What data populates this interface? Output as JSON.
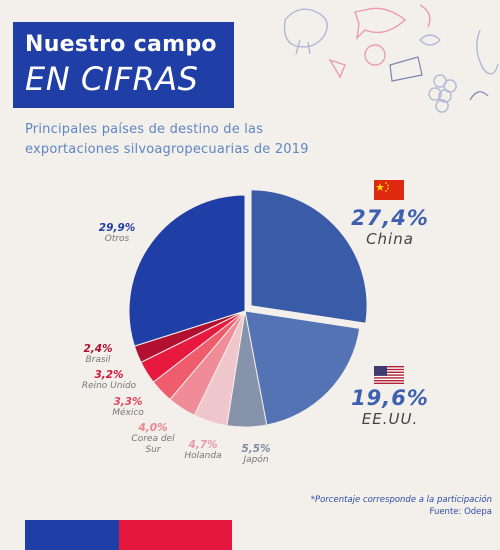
{
  "title": {
    "line1": "Nuestro campo",
    "line2": "EN CIFRAS"
  },
  "colors": {
    "background": "#f3efea",
    "title_box": "#1f3ea6",
    "bottom_blue": "#1f3ea6",
    "bottom_red": "#e6173f"
  },
  "chart_data": {
    "type": "pie",
    "title": "Principales países de destino de las exportaciones silvoagropecuarias de 2019",
    "unit": "%",
    "exploded_slice": "China",
    "slices": [
      {
        "label": "China",
        "value": 27.4,
        "value_text": "27,4%",
        "color": "#3a5ba8"
      },
      {
        "label": "EE.UU.",
        "value": 19.6,
        "value_text": "19,6%",
        "color": "#5473b5"
      },
      {
        "label": "Japón",
        "value": 5.5,
        "value_text": "5,5%",
        "color": "#8793aa"
      },
      {
        "label": "Holanda",
        "value": 4.7,
        "value_text": "4,7%",
        "color": "#efc6cb"
      },
      {
        "label": "Corea del Sur",
        "value": 4.0,
        "value_text": "4,0%",
        "color": "#ef8c98"
      },
      {
        "label": "México",
        "value": 3.3,
        "value_text": "3,3%",
        "color": "#ef5c6c"
      },
      {
        "label": "Reino Unido",
        "value": 3.2,
        "value_text": "3,2%",
        "color": "#e8193f"
      },
      {
        "label": "Brasil",
        "value": 2.4,
        "value_text": "2,4%",
        "color": "#b21030"
      },
      {
        "label": "Otros",
        "value": 29.9,
        "value_text": "29,9%",
        "color": "#1f3ea6"
      }
    ],
    "label_colors": {
      "China": "#3d61b0",
      "EE.UU.": "#3d61b0",
      "Japón": "#7f8aa3",
      "Holanda": "#e79aa6",
      "Corea del Sur": "#ec8593",
      "México": "#e0485e",
      "Reino Unido": "#d1163a",
      "Brasil": "#b0102f",
      "Otros": "#1f3ea6"
    }
  },
  "labels": {
    "china": {
      "value": "27,4%",
      "name": "China"
    },
    "usa": {
      "value": "19,6%",
      "name": "EE.UU."
    },
    "japon": {
      "value": "5,5%",
      "name": "Japón"
    },
    "holanda": {
      "value": "4,7%",
      "name": "Holanda"
    },
    "corea": {
      "value": "4,0%",
      "name_line1": "Corea del",
      "name_line2": "Sur"
    },
    "mexico": {
      "value": "3,3%",
      "name": "México"
    },
    "reino": {
      "value": "3,2%",
      "name": "Reino Unido"
    },
    "brasil": {
      "value": "2,4%",
      "name": "Brasil"
    },
    "otros": {
      "value": "29,9%",
      "name": "Otros"
    }
  },
  "footnote": {
    "note": "*Porcentaje corresponde a la participación",
    "source": "Fuente: Odepa"
  }
}
